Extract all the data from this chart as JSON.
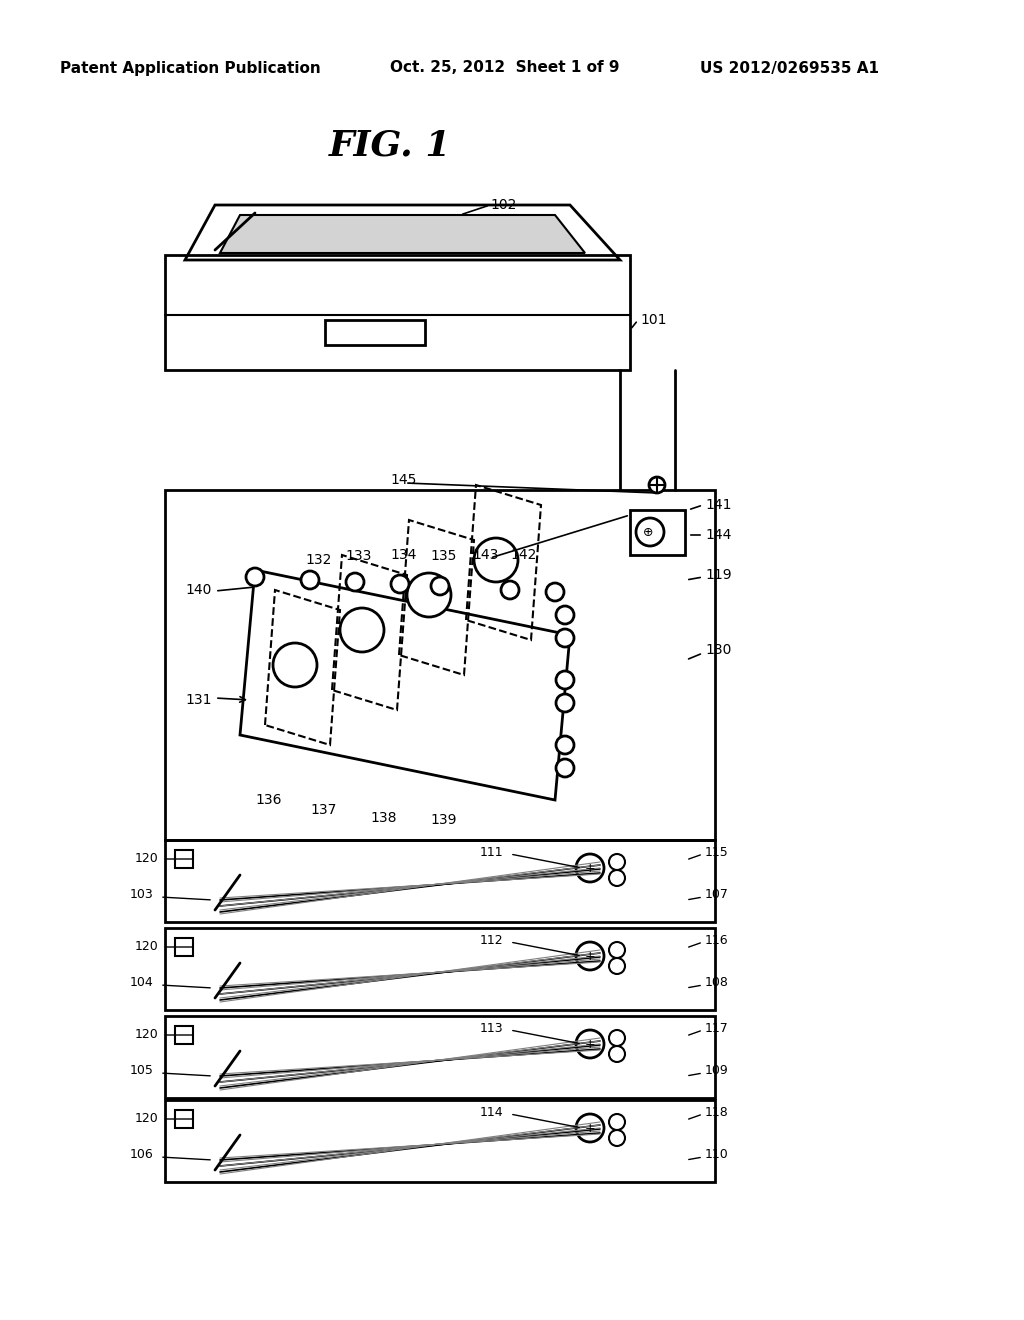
{
  "title": "FIG. 1",
  "header_left": "Patent Application Publication",
  "header_center": "Oct. 25, 2012  Sheet 1 of 9",
  "header_right": "US 2012/0269535 A1",
  "bg_color": "#ffffff",
  "line_color": "#000000"
}
